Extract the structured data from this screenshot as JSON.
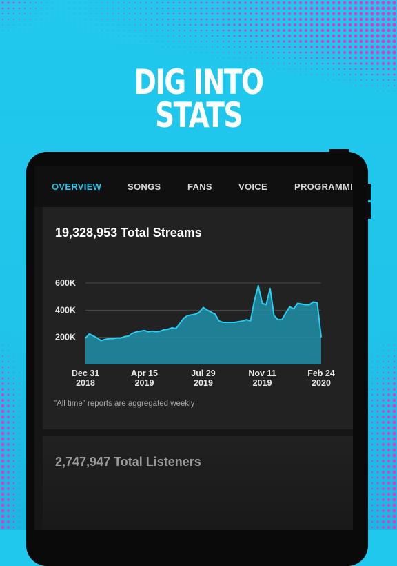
{
  "headline": {
    "line1": "DIG INTO",
    "line2": "STATS"
  },
  "colors": {
    "accent": "#25c8ea",
    "background": "#20c4ea",
    "dots": "#e834c8"
  },
  "tabs": [
    {
      "label": "OVERVIEW",
      "active": true
    },
    {
      "label": "SONGS"
    },
    {
      "label": "FANS"
    },
    {
      "label": "VOICE"
    },
    {
      "label": "PROGRAMMING"
    }
  ],
  "streams_card": {
    "title": "19,328,953 Total Streams",
    "note": "\"All time\" reports are aggregated weekly"
  },
  "listeners_card": {
    "title": "2,747,947 Total Listeners"
  },
  "chart_data": {
    "type": "area",
    "y_ticks": [
      "600K",
      "400K",
      "200K"
    ],
    "ylim": [
      0,
      600000
    ],
    "x_ticks": [
      {
        "line1": "Dec 31",
        "line2": "2018"
      },
      {
        "line1": "Apr 15",
        "line2": "2019"
      },
      {
        "line1": "Jul 29",
        "line2": "2019"
      },
      {
        "line1": "Nov 11",
        "line2": "2019"
      },
      {
        "line1": "Feb 24",
        "line2": "2020"
      }
    ],
    "series": [
      {
        "values": [
          195000,
          225000,
          210000,
          195000,
          175000,
          185000,
          190000,
          190000,
          195000,
          195000,
          205000,
          210000,
          230000,
          240000,
          245000,
          250000,
          240000,
          245000,
          240000,
          245000,
          255000,
          260000,
          270000,
          265000,
          300000,
          340000,
          360000,
          365000,
          370000,
          385000,
          420000,
          400000,
          385000,
          370000,
          320000,
          310000,
          310000,
          310000,
          310000,
          315000,
          320000,
          330000,
          320000,
          470000,
          580000,
          450000,
          440000,
          560000,
          360000,
          330000,
          330000,
          380000,
          425000,
          410000,
          450000,
          445000,
          440000,
          440000,
          460000,
          455000,
          200000
        ]
      }
    ],
    "grid": true
  }
}
